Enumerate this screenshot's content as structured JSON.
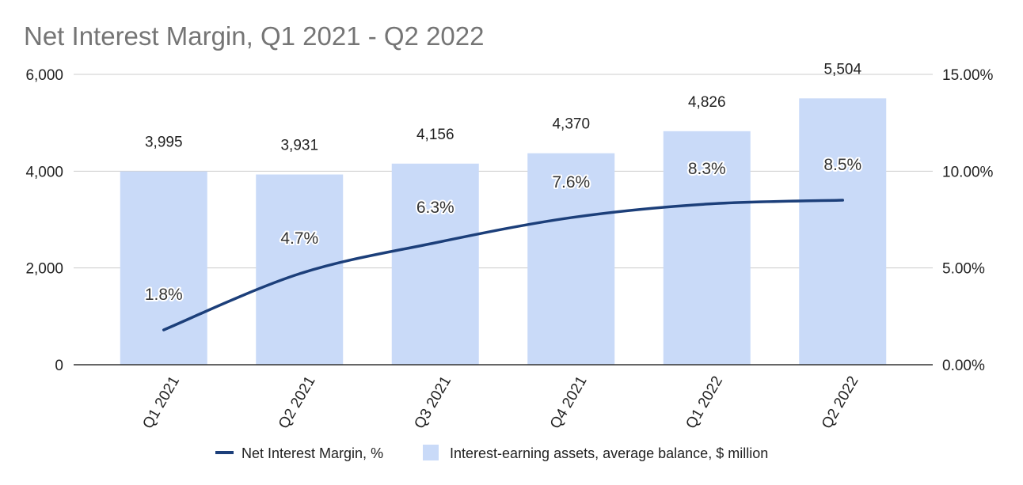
{
  "chart_data": {
    "type": "bar",
    "title": "Net Interest Margin,  Q1 2021 - Q2 2022",
    "categories": [
      "Q1 2021",
      "Q2 2021",
      "Q3 2021",
      "Q4 2021",
      "Q1 2022",
      "Q2 2022"
    ],
    "series": [
      {
        "name": "Interest-earning assets, average balance, $ million",
        "type": "bar",
        "axis": "left",
        "values": [
          3995,
          3931,
          4156,
          4370,
          4826,
          5504
        ],
        "labels": [
          "3,995",
          "3,931",
          "4,156",
          "4,370",
          "4,826",
          "5,504"
        ],
        "color": "#c9daf8"
      },
      {
        "name": "Net Interest Margin, %",
        "type": "line",
        "axis": "right",
        "values": [
          1.8,
          4.7,
          6.3,
          7.6,
          8.3,
          8.5
        ],
        "labels": [
          "1.8%",
          "4.7%",
          "6.3%",
          "7.6%",
          "8.3%",
          "8.5%"
        ],
        "color": "#1c3f7a"
      }
    ],
    "y_left": {
      "ylim": [
        0,
        6000
      ],
      "ticks": [
        0,
        2000,
        4000,
        6000
      ],
      "tick_labels": [
        "0",
        "2,000",
        "4,000",
        "6,000"
      ]
    },
    "y_right": {
      "ylim": [
        0,
        15
      ],
      "ticks": [
        0,
        5,
        10,
        15
      ],
      "tick_labels": [
        "0.00%",
        "5.00%",
        "10.00%",
        "15.00%"
      ]
    },
    "grid": true,
    "legend_position": "bottom"
  }
}
